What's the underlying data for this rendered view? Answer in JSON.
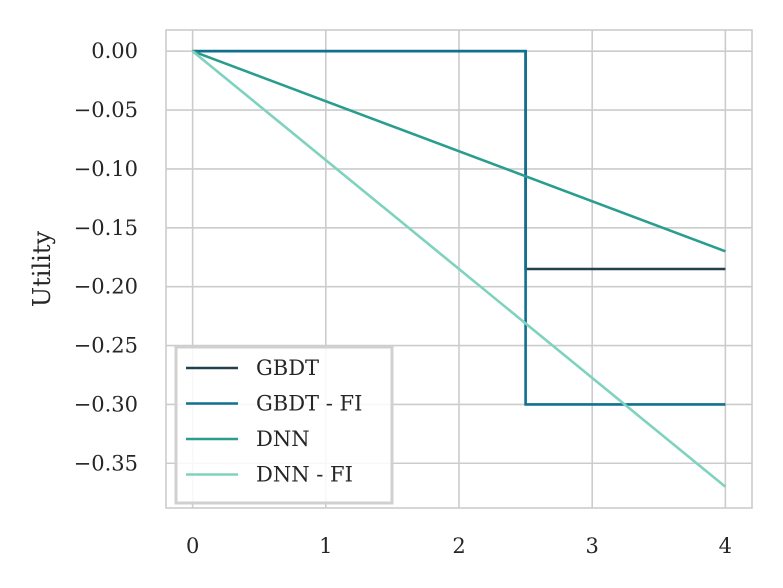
{
  "chart_data": {
    "type": "line",
    "title": "",
    "xlabel": "",
    "ylabel": "Utility",
    "xlim": [
      -0.2,
      4.2
    ],
    "ylim": [
      -0.388,
      0.018
    ],
    "xticks": [
      0,
      1,
      2,
      3,
      4
    ],
    "xtick_labels": [
      "0",
      "1",
      "2",
      "3",
      "4"
    ],
    "yticks": [
      0.0,
      -0.05,
      -0.1,
      -0.15,
      -0.2,
      -0.25,
      -0.3,
      -0.35
    ],
    "ytick_labels": [
      "0.00",
      "−0.05",
      "−0.10",
      "−0.15",
      "−0.20",
      "−0.25",
      "−0.30",
      "−0.35"
    ],
    "grid": true,
    "legend_position": "lower-left",
    "series": [
      {
        "name": "GBDT",
        "color": "#23404f",
        "x": [
          0,
          2.5,
          2.5,
          4
        ],
        "y": [
          0.0,
          0.0,
          -0.185,
          -0.185
        ]
      },
      {
        "name": "GBDT - FI",
        "color": "#10708f",
        "x": [
          0,
          2.5,
          2.5,
          4
        ],
        "y": [
          0.0,
          0.0,
          -0.3,
          -0.3
        ]
      },
      {
        "name": "DNN",
        "color": "#2a9d8f",
        "x": [
          0,
          4
        ],
        "y": [
          0.0,
          -0.17
        ]
      },
      {
        "name": "DNN - FI",
        "color": "#7fd3be",
        "x": [
          0,
          4
        ],
        "y": [
          0.0,
          -0.37
        ]
      }
    ]
  }
}
